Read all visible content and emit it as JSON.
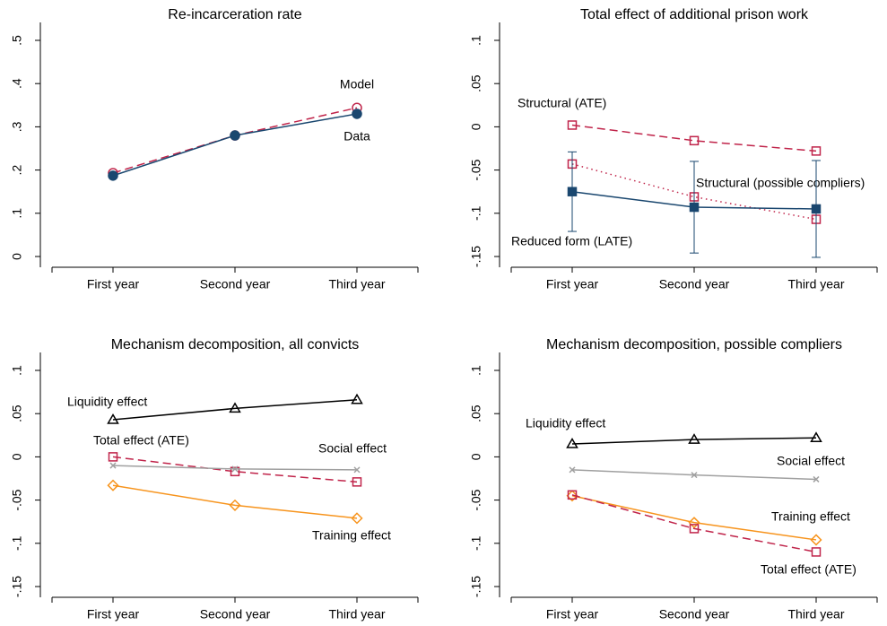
{
  "chart_data": [
    {
      "type": "line",
      "title": "Re-incarceration rate",
      "categories": [
        "First year",
        "Second year",
        "Third year"
      ],
      "ylim": [
        0,
        0.5
      ],
      "yticks": [
        0,
        {
          "value": 0.1,
          "label": ".1"
        },
        {
          "value": 0.2,
          "label": ".2"
        },
        {
          "value": 0.3,
          "label": ".3"
        },
        {
          "value": 0.4,
          "label": ".4"
        },
        {
          "value": 0.5,
          "label": ".5"
        }
      ],
      "series": [
        {
          "name": "Model",
          "color": "#c0244a",
          "dash": "dashed",
          "marker": "circle-open",
          "values": [
            0.193,
            0.28,
            0.344
          ]
        },
        {
          "name": "Data",
          "color": "#1a476f",
          "dash": "solid",
          "marker": "circle",
          "values": [
            0.187,
            0.28,
            0.33
          ]
        }
      ]
    },
    {
      "type": "line",
      "title": "Total effect of additional prison work",
      "categories": [
        "First year",
        "Second year",
        "Third year"
      ],
      "ylim": [
        -0.15,
        0.1
      ],
      "yticks": [
        {
          "value": -0.15,
          "label": "-.15"
        },
        {
          "value": -0.1,
          "label": "-.1"
        },
        {
          "value": -0.05,
          "label": "-.05"
        },
        0,
        {
          "value": 0.05,
          "label": ".05"
        },
        {
          "value": 0.1,
          "label": ".1"
        }
      ],
      "series": [
        {
          "name": "Structural (ATE)",
          "color": "#c0244a",
          "dash": "dashed",
          "marker": "square-open",
          "values": [
            0.002,
            -0.016,
            -0.028
          ]
        },
        {
          "name": "Structural (possible compliers)",
          "color": "#c0244a",
          "dash": "dotted",
          "marker": "square-open",
          "values": [
            -0.043,
            -0.081,
            -0.107
          ]
        },
        {
          "name": "Reduced form (LATE)",
          "color": "#1a476f",
          "dash": "solid",
          "marker": "square",
          "values": [
            -0.075,
            -0.093,
            -0.095
          ],
          "errors": [
            0.046,
            0.053,
            0.056
          ]
        }
      ]
    },
    {
      "type": "line",
      "title": "Mechanism decomposition, all convicts",
      "categories": [
        "First year",
        "Second year",
        "Third year"
      ],
      "ylim": [
        -0.15,
        0.1
      ],
      "yticks": [
        {
          "value": -0.15,
          "label": "-.15"
        },
        {
          "value": -0.1,
          "label": "-.1"
        },
        {
          "value": -0.05,
          "label": "-.05"
        },
        0,
        {
          "value": 0.05,
          "label": ".05"
        },
        {
          "value": 0.1,
          "label": ".1"
        }
      ],
      "series": [
        {
          "name": "Liquidity effect",
          "color": "#000000",
          "dash": "solid",
          "marker": "triangle-open",
          "values": [
            0.043,
            0.056,
            0.066
          ]
        },
        {
          "name": "Total effect (ATE)",
          "color": "#c0244a",
          "dash": "dashed",
          "marker": "square-open",
          "values": [
            0.0,
            -0.017,
            -0.029
          ]
        },
        {
          "name": "Social effect",
          "color": "#a0a0a0",
          "dash": "solid",
          "marker": "x",
          "values": [
            -0.01,
            -0.014,
            -0.015
          ]
        },
        {
          "name": "Training effect",
          "color": "#f7941d",
          "dash": "solid",
          "marker": "diamond-open",
          "values": [
            -0.033,
            -0.056,
            -0.071
          ]
        }
      ]
    },
    {
      "type": "line",
      "title": "Mechanism decomposition, possible compliers",
      "categories": [
        "First year",
        "Second year",
        "Third year"
      ],
      "ylim": [
        -0.15,
        0.1
      ],
      "yticks": [
        {
          "value": -0.15,
          "label": "-.15"
        },
        {
          "value": -0.1,
          "label": "-.1"
        },
        {
          "value": -0.05,
          "label": "-.05"
        },
        0,
        {
          "value": 0.05,
          "label": ".05"
        },
        {
          "value": 0.1,
          "label": ".1"
        }
      ],
      "series": [
        {
          "name": "Liquidity effect",
          "color": "#000000",
          "dash": "solid",
          "marker": "triangle-open",
          "values": [
            0.015,
            0.02,
            0.022
          ]
        },
        {
          "name": "Social effect",
          "color": "#a0a0a0",
          "dash": "solid",
          "marker": "x",
          "values": [
            -0.015,
            -0.021,
            -0.026
          ]
        },
        {
          "name": "Training effect",
          "color": "#f7941d",
          "dash": "solid",
          "marker": "diamond-open",
          "values": [
            -0.045,
            -0.076,
            -0.096
          ]
        },
        {
          "name": "Total effect (ATE)",
          "color": "#c0244a",
          "dash": "dashed",
          "marker": "square-open",
          "values": [
            -0.044,
            -0.083,
            -0.11
          ]
        }
      ]
    }
  ]
}
